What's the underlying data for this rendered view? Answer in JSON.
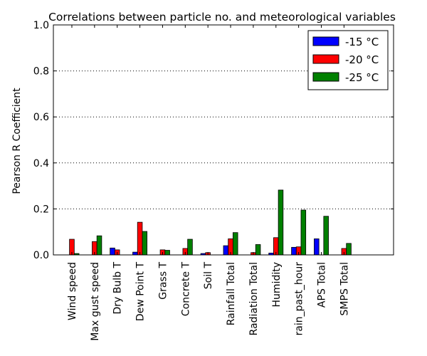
{
  "chart_data": {
    "type": "bar",
    "title": "Correlations between particle no. and meteorological variables",
    "xlabel": "",
    "ylabel": "Pearson R Coefficient",
    "ylim": [
      0,
      1.0
    ],
    "yticks": [
      0.0,
      0.2,
      0.4,
      0.6,
      0.8,
      1.0
    ],
    "ytick_labels": [
      "0.0",
      "0.2",
      "0.4",
      "0.6",
      "0.8",
      "1.0"
    ],
    "grid": "horizontal dotted",
    "legend_position": "top-right",
    "categories": [
      "Wind speed",
      "Max gust speed",
      "Dry Bulb T",
      "Dew Point T",
      "Grass T",
      "Concrete T",
      "Soil T",
      "Rainfall Total",
      "Radiation Total",
      "Humidity",
      "rain_past_hour",
      "APS Total",
      "SMPS Total"
    ],
    "series": [
      {
        "name": "-15 °C",
        "color": "#0000ff",
        "values": [
          0.0,
          0.0,
          0.03,
          0.012,
          0.0,
          0.0,
          0.006,
          0.04,
          0.0,
          0.008,
          0.033,
          0.07,
          0.0
        ]
      },
      {
        "name": "-20 °C",
        "color": "#ff0000",
        "values": [
          0.068,
          0.058,
          0.022,
          0.142,
          0.022,
          0.028,
          0.01,
          0.07,
          0.01,
          0.075,
          0.035,
          0.0,
          0.028
        ]
      },
      {
        "name": "-25 °C",
        "color": "#008000",
        "values": [
          0.006,
          0.083,
          0.0,
          0.102,
          0.02,
          0.068,
          0.0,
          0.097,
          0.045,
          0.282,
          0.195,
          0.168,
          0.05
        ]
      }
    ]
  }
}
